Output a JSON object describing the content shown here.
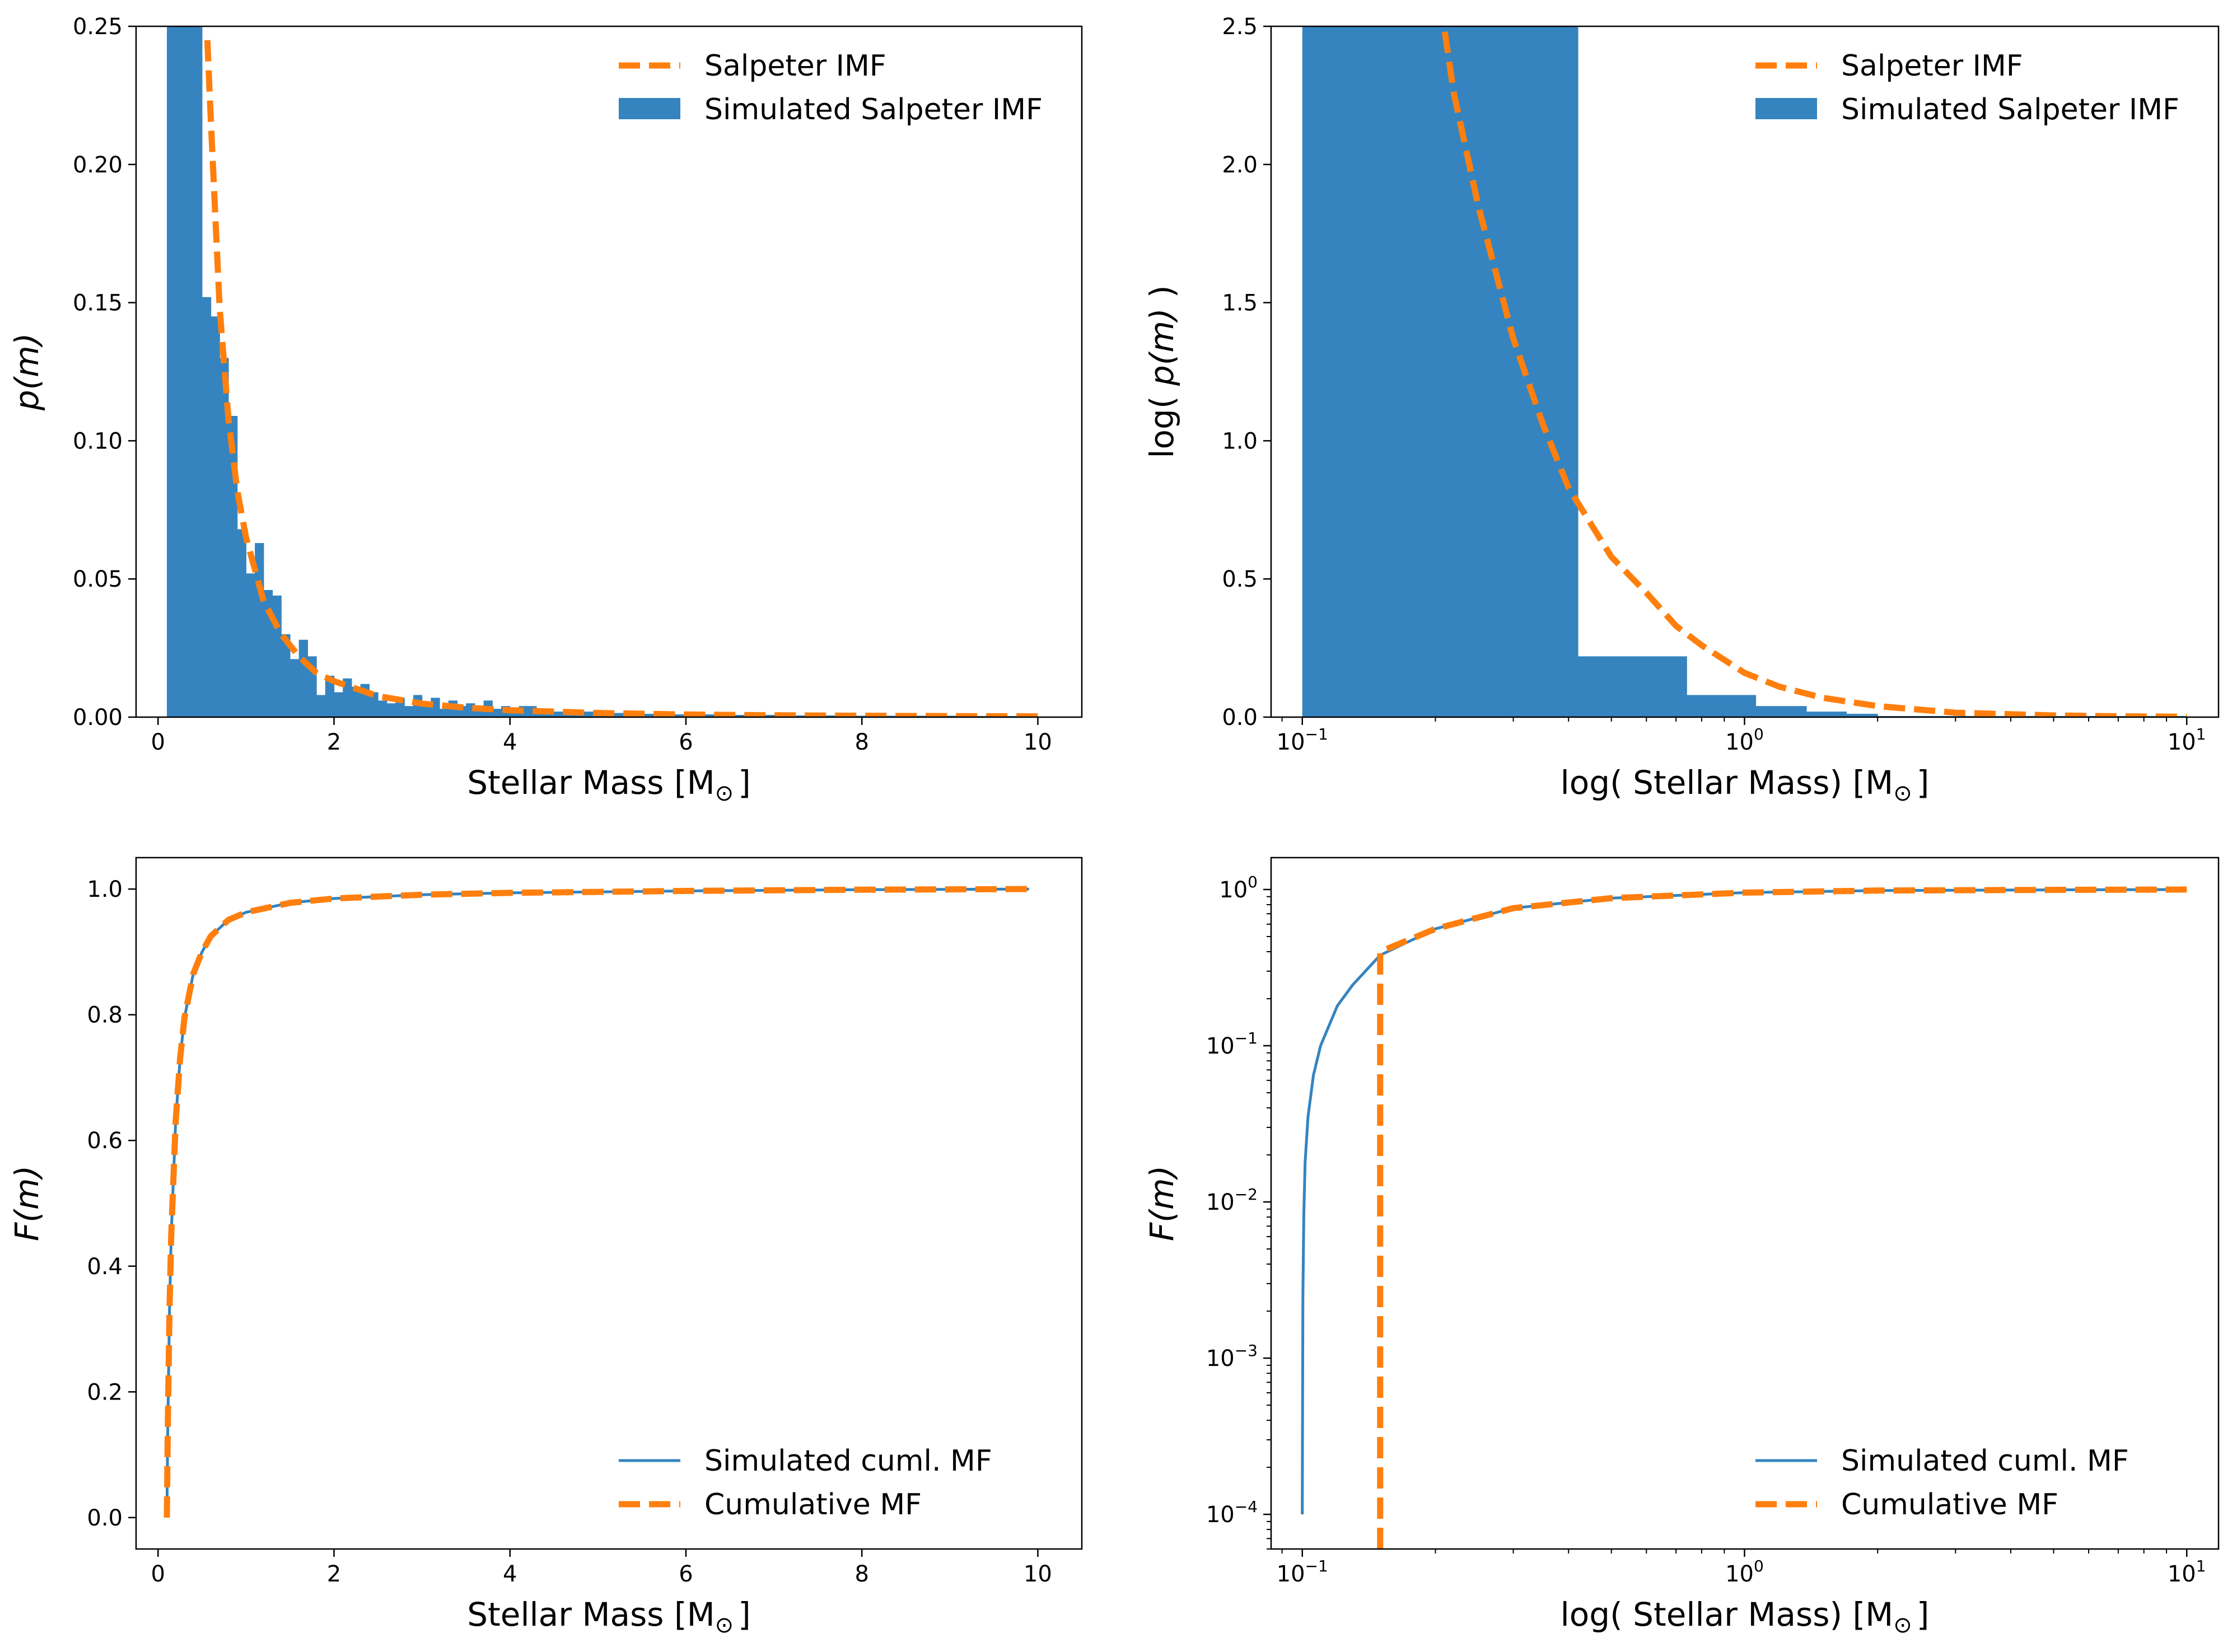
{
  "colors": {
    "blue": "#3584bf",
    "orange": "#ff7f0e",
    "axis": "#000000"
  },
  "chart_data": [
    {
      "type": "bar",
      "panel": "top-left",
      "xlabel_text": "Stellar Mass [M",
      "xlabel_sub": "⊙",
      "xlabel_close": "]",
      "ylabel_text": "p",
      "ylabel_arg": "(m)",
      "xscale": "linear",
      "yscale": "linear",
      "xlim": [
        -0.25,
        10.5
      ],
      "ylim": [
        0,
        0.25
      ],
      "xticks": [
        0,
        2,
        4,
        6,
        8,
        10
      ],
      "xtick_labels": [
        "0",
        "2",
        "4",
        "6",
        "8",
        "10"
      ],
      "yticks": [
        0,
        0.05,
        0.1,
        0.15,
        0.2,
        0.25
      ],
      "ytick_labels": [
        "0.00",
        "0.05",
        "0.10",
        "0.15",
        "0.20",
        "0.25"
      ],
      "legend_position": "top-right",
      "legend": [
        "Salpeter IMF",
        "Simulated Salpeter IMF"
      ],
      "series": [
        {
          "name": "Simulated Salpeter IMF",
          "kind": "histogram",
          "color": "#3584bf",
          "bin_width": 0.1,
          "bin_start": 0.1,
          "heights": [
            0.25,
            0.25,
            0.25,
            0.25,
            0.152,
            0.145,
            0.13,
            0.109,
            0.068,
            0.052,
            0.063,
            0.046,
            0.044,
            0.03,
            0.021,
            0.028,
            0.022,
            0.008,
            0.015,
            0.009,
            0.014,
            0.011,
            0.012,
            0.009,
            0.006,
            0.005,
            0.007,
            0.004,
            0.008,
            0.005,
            0.007,
            0.003,
            0.006,
            0.004,
            0.005,
            0.003,
            0.006,
            0.003,
            0.004,
            0.002,
            0.004,
            0.004,
            0.003,
            0.002,
            0.002,
            0.002,
            0.002,
            0.002,
            0.002,
            0.0015,
            0.0015,
            0.0015,
            0.0015,
            0.0012,
            0.0012,
            0.0012,
            0.0012,
            0.001,
            0.001,
            0.001,
            0.001,
            0.001,
            0.001,
            0.0008,
            0.0008,
            0.0008,
            0.0008,
            0.0008,
            0.0008,
            0.0008,
            0.0006,
            0.0006,
            0.0006,
            0.0006,
            0.0006,
            0.0006,
            0.0006,
            0.0005,
            0.0005,
            0.0005,
            0.0005,
            0.0005,
            0.0005,
            0.0005,
            0.0005,
            0.0005,
            0.0005,
            0.0005,
            0.0005,
            0.0005,
            0.0005,
            0.0004,
            0.0004,
            0.0004,
            0.0004,
            0.0004,
            0.0004,
            0.0004,
            0.0004
          ]
        },
        {
          "name": "Salpeter IMF",
          "kind": "line-dashed",
          "color": "#ff7f0e",
          "x": [
            0.56,
            0.6,
            0.7,
            0.8,
            0.9,
            1.0,
            1.2,
            1.4,
            1.6,
            1.8,
            2.0,
            2.5,
            3.0,
            3.5,
            4.0,
            5.0,
            6.0,
            7.0,
            8.0,
            9.0,
            10.0
          ],
          "y": [
            0.245,
            0.216,
            0.148,
            0.108,
            0.082,
            0.065,
            0.042,
            0.03,
            0.022,
            0.016,
            0.013,
            0.0076,
            0.0049,
            0.0034,
            0.0025,
            0.0015,
            0.00095,
            0.00066,
            0.00048,
            0.00036,
            0.00028
          ]
        }
      ]
    },
    {
      "type": "bar",
      "panel": "top-right",
      "xlabel_text": "log( Stellar Mass)  [M",
      "xlabel_sub": "⊙",
      "xlabel_close": "]",
      "ylabel_text": "log( ",
      "ylabel_arg": "p(m)",
      "ylabel_close": " )",
      "xscale": "log",
      "yscale": "linear",
      "xlim": [
        0.085,
        11.8
      ],
      "ylim": [
        0,
        2.5
      ],
      "xticks": [
        0.1,
        1,
        10
      ],
      "xtick_base": "10",
      "xtick_exps": [
        "−1",
        "0",
        "1"
      ],
      "yticks": [
        0,
        0.5,
        1.0,
        1.5,
        2.0,
        2.5
      ],
      "ytick_labels": [
        "0.0",
        "0.5",
        "1.0",
        "1.5",
        "2.0",
        "2.5"
      ],
      "legend_position": "top-right",
      "legend": [
        "Salpeter IMF",
        "Simulated Salpeter IMF"
      ],
      "series": [
        {
          "name": "Simulated Salpeter IMF",
          "kind": "histogram",
          "color": "#3584bf",
          "bins": [
            [
              0.1,
              0.42,
              2.5
            ],
            [
              0.42,
              0.74,
              0.22
            ],
            [
              0.74,
              1.06,
              0.08
            ],
            [
              1.06,
              1.38,
              0.04
            ],
            [
              1.38,
              1.7,
              0.02
            ],
            [
              1.7,
              2.0,
              0.012
            ],
            [
              2.0,
              10.0,
              0.004
            ]
          ]
        },
        {
          "name": "Salpeter IMF",
          "kind": "line-dashed",
          "color": "#ff7f0e",
          "x": [
            0.21,
            0.22,
            0.25,
            0.3,
            0.35,
            0.4,
            0.5,
            0.6,
            0.7,
            0.8,
            1.0,
            1.2,
            1.5,
            2.0,
            3.0,
            5.0,
            7.0,
            10.0
          ],
          "y": [
            2.48,
            2.26,
            1.85,
            1.37,
            1.06,
            0.83,
            0.58,
            0.45,
            0.33,
            0.26,
            0.16,
            0.11,
            0.07,
            0.04,
            0.016,
            0.006,
            0.003,
            0.0014
          ]
        }
      ]
    },
    {
      "type": "line",
      "panel": "bottom-left",
      "xlabel_text": "Stellar Mass [M",
      "xlabel_sub": "⊙",
      "xlabel_close": "]",
      "ylabel_text": "F",
      "ylabel_arg": "(m)",
      "xscale": "linear",
      "yscale": "linear",
      "xlim": [
        -0.25,
        10.5
      ],
      "ylim": [
        -0.05,
        1.05
      ],
      "xticks": [
        0,
        2,
        4,
        6,
        8,
        10
      ],
      "xtick_labels": [
        "0",
        "2",
        "4",
        "6",
        "8",
        "10"
      ],
      "yticks": [
        0,
        0.2,
        0.4,
        0.6,
        0.8,
        1.0
      ],
      "ytick_labels": [
        "0.0",
        "0.2",
        "0.4",
        "0.6",
        "0.8",
        "1.0"
      ],
      "legend_position": "bottom-right",
      "legend": [
        "Simulated cuml. MF",
        "Cumulative MF"
      ],
      "series": [
        {
          "name": "Simulated cuml. MF",
          "kind": "line-solid",
          "color": "#3584bf",
          "x": [
            0.1,
            0.11,
            0.13,
            0.15,
            0.2,
            0.25,
            0.3,
            0.4,
            0.5,
            0.6,
            0.8,
            1.0,
            1.5,
            2.0,
            3.0,
            4.0,
            6.0,
            8.0,
            9.9
          ],
          "y": [
            0.0,
            0.14,
            0.33,
            0.45,
            0.63,
            0.73,
            0.795,
            0.865,
            0.9,
            0.925,
            0.951,
            0.963,
            0.978,
            0.985,
            0.991,
            0.994,
            0.997,
            0.999,
            1.0
          ]
        },
        {
          "name": "Cumulative MF",
          "kind": "line-dashed",
          "color": "#ff7f0e",
          "x": [
            0.1,
            0.11,
            0.13,
            0.15,
            0.2,
            0.25,
            0.3,
            0.4,
            0.5,
            0.6,
            0.8,
            1.0,
            1.5,
            2.0,
            3.0,
            4.0,
            6.0,
            8.0,
            9.9
          ],
          "y": [
            0.0,
            0.14,
            0.33,
            0.45,
            0.63,
            0.73,
            0.795,
            0.865,
            0.9,
            0.925,
            0.951,
            0.963,
            0.978,
            0.985,
            0.991,
            0.994,
            0.997,
            0.999,
            1.0
          ]
        }
      ]
    },
    {
      "type": "line",
      "panel": "bottom-right",
      "xlabel_text": "log( Stellar Mass)  [M",
      "xlabel_sub": "⊙",
      "xlabel_close": "]",
      "ylabel_text": "F",
      "ylabel_arg": "(m)",
      "xscale": "log",
      "yscale": "log",
      "xlim": [
        0.085,
        11.8
      ],
      "ylim": [
        6e-05,
        1.6
      ],
      "xticks": [
        0.1,
        1,
        10
      ],
      "xtick_base": "10",
      "xtick_exps": [
        "−1",
        "0",
        "1"
      ],
      "yticks": [
        0.0001,
        0.001,
        0.01,
        0.1,
        1
      ],
      "ytick_base": "10",
      "ytick_exps": [
        "−4",
        "−3",
        "−2",
        "−1",
        "0"
      ],
      "legend_position": "bottom-right",
      "legend": [
        "Simulated cuml. MF",
        "Cumulative MF"
      ],
      "series": [
        {
          "name": "Simulated cuml. MF",
          "kind": "line-solid",
          "color": "#3584bf",
          "x": [
            0.1,
            0.1003,
            0.1008,
            0.1015,
            0.103,
            0.106,
            0.11,
            0.12,
            0.13,
            0.15,
            0.2,
            0.3,
            0.5,
            1.0,
            2.0,
            5.0,
            10.0
          ],
          "y": [
            0.0001,
            0.0025,
            0.0085,
            0.018,
            0.035,
            0.065,
            0.1,
            0.18,
            0.245,
            0.38,
            0.56,
            0.76,
            0.88,
            0.955,
            0.985,
            0.995,
            1.0
          ]
        },
        {
          "name": "Cumulative MF",
          "kind": "line-dashed",
          "color": "#ff7f0e",
          "x": [
            0.15,
            0.15,
            0.2,
            0.3,
            0.5,
            1.0,
            2.0,
            5.0,
            10.0
          ],
          "y": [
            6e-05,
            0.4,
            0.56,
            0.76,
            0.88,
            0.955,
            0.985,
            0.995,
            1.0
          ]
        }
      ]
    }
  ]
}
